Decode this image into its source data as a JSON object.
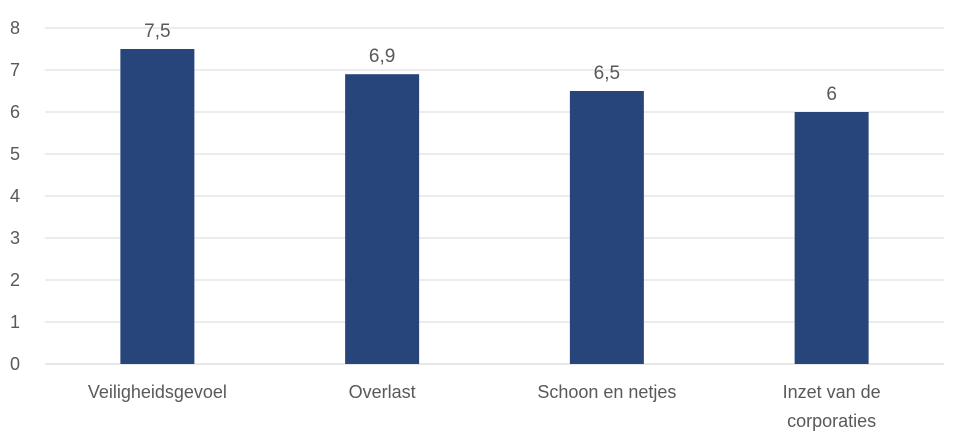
{
  "chart_data": {
    "type": "bar",
    "title": "",
    "xlabel": "",
    "ylabel": "",
    "ylim": [
      0,
      8
    ],
    "yticks": [
      "0",
      "1",
      "2",
      "3",
      "4",
      "5",
      "6",
      "7",
      "8"
    ],
    "grid": true,
    "legend": "none",
    "categories": [
      [
        "Veiligheidsgevoel"
      ],
      [
        "Overlast"
      ],
      [
        "Schoon en netjes"
      ],
      [
        "Inzet van de",
        "corporaties"
      ]
    ],
    "values": [
      7.5,
      6.9,
      6.5,
      6
    ],
    "value_labels": [
      "7,5",
      "6,9",
      "6,5",
      "6"
    ],
    "colors": {
      "bar": "#27457b"
    }
  }
}
